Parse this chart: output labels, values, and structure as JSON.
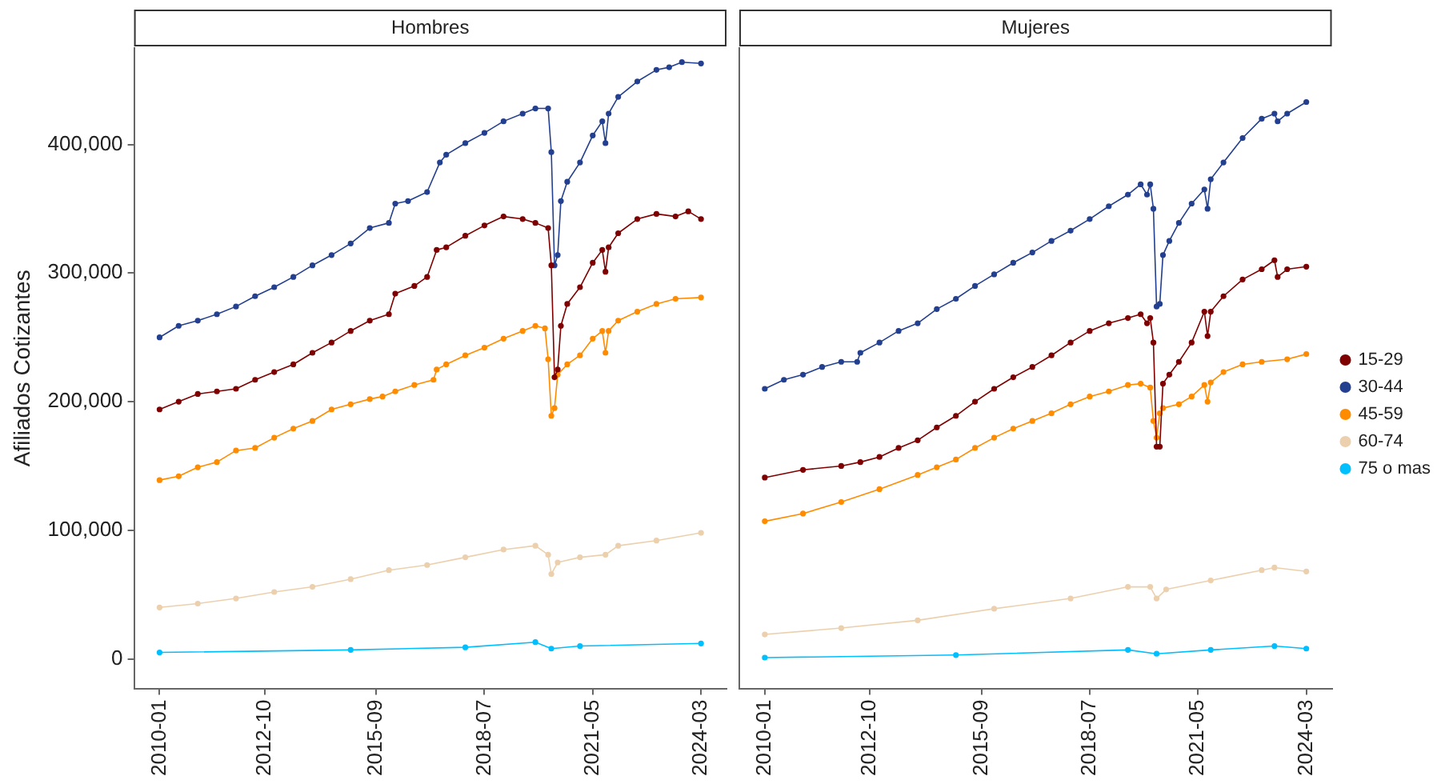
{
  "chart_data": [
    {
      "type": "line",
      "title": "Hombres",
      "ylabel": "Afiliados Cotizantes",
      "xlim": [
        "2009-05",
        "2024-11"
      ],
      "ylim": [
        -23000,
        475000
      ],
      "xticks": [
        "2010-01",
        "2012-10",
        "2015-09",
        "2018-07",
        "2021-05",
        "2024-03"
      ],
      "yticks": [
        {
          "value": 0,
          "label": "0"
        },
        {
          "value": 100000,
          "label": "100,000"
        },
        {
          "value": 200000,
          "label": "200,000"
        },
        {
          "value": 300000,
          "label": "300,000"
        },
        {
          "value": 400000,
          "label": "400,000"
        }
      ],
      "grid": false,
      "legend": false,
      "marker": "circle",
      "line_style": "solid",
      "series": [
        {
          "color": "#7f0000",
          "x": [
            "2010-01",
            "2010-07",
            "2011-01",
            "2011-07",
            "2012-01",
            "2012-07",
            "2013-01",
            "2013-07",
            "2014-01",
            "2014-07",
            "2015-01",
            "2015-07",
            "2016-01",
            "2016-03",
            "2016-09",
            "2017-01",
            "2017-04",
            "2017-07",
            "2018-01",
            "2018-07",
            "2019-01",
            "2019-07",
            "2019-11",
            "2020-03",
            "2020-04",
            "2020-05",
            "2020-06",
            "2020-07",
            "2020-09",
            "2021-01",
            "2021-05",
            "2021-08",
            "2021-09",
            "2021-10",
            "2022-01",
            "2022-07",
            "2023-01",
            "2023-07",
            "2023-11",
            "2024-03"
          ],
          "values": [
            194000,
            200000,
            206000,
            208000,
            210000,
            217000,
            223000,
            229000,
            238000,
            246000,
            255000,
            263000,
            268000,
            284000,
            290000,
            297000,
            318000,
            320000,
            329000,
            337000,
            344000,
            342000,
            339000,
            335000,
            306000,
            219000,
            225000,
            259000,
            276000,
            289000,
            308000,
            318000,
            301000,
            320000,
            331000,
            342000,
            346000,
            344000,
            348000,
            342000
          ]
        },
        {
          "color": "#233f8f",
          "x": [
            "2010-01",
            "2010-07",
            "2011-01",
            "2011-07",
            "2012-01",
            "2012-07",
            "2013-01",
            "2013-07",
            "2014-01",
            "2014-07",
            "2015-01",
            "2015-07",
            "2016-01",
            "2016-03",
            "2016-07",
            "2017-01",
            "2017-05",
            "2017-07",
            "2018-01",
            "2018-07",
            "2019-01",
            "2019-07",
            "2019-11",
            "2020-03",
            "2020-04",
            "2020-05",
            "2020-06",
            "2020-07",
            "2020-09",
            "2021-01",
            "2021-05",
            "2021-08",
            "2021-09",
            "2021-10",
            "2022-01",
            "2022-07",
            "2023-01",
            "2023-05",
            "2023-09",
            "2024-03"
          ],
          "values": [
            250000,
            259000,
            263000,
            268000,
            274000,
            282000,
            289000,
            297000,
            306000,
            314000,
            323000,
            335000,
            339000,
            354000,
            356000,
            363000,
            386000,
            392000,
            401000,
            409000,
            418000,
            424000,
            428000,
            428000,
            394000,
            306000,
            314000,
            356000,
            371000,
            386000,
            407000,
            418000,
            401000,
            424000,
            437000,
            449000,
            458000,
            460000,
            464000,
            463000
          ]
        },
        {
          "color": "#ff8c00",
          "x": [
            "2010-01",
            "2010-07",
            "2011-01",
            "2011-07",
            "2012-01",
            "2012-07",
            "2013-01",
            "2013-07",
            "2014-01",
            "2014-07",
            "2015-01",
            "2015-07",
            "2015-11",
            "2016-03",
            "2016-09",
            "2017-03",
            "2017-04",
            "2017-07",
            "2018-01",
            "2018-07",
            "2019-01",
            "2019-07",
            "2019-11",
            "2020-02",
            "2020-03",
            "2020-04",
            "2020-05",
            "2020-06",
            "2020-09",
            "2021-01",
            "2021-05",
            "2021-08",
            "2021-09",
            "2021-10",
            "2022-01",
            "2022-07",
            "2023-01",
            "2023-07",
            "2024-03"
          ],
          "values": [
            139000,
            142000,
            149000,
            153000,
            162000,
            164000,
            172000,
            179000,
            185000,
            194000,
            198000,
            202000,
            204000,
            208000,
            213000,
            217000,
            225000,
            229000,
            236000,
            242000,
            249000,
            255000,
            259000,
            257000,
            233000,
            189000,
            195000,
            221000,
            229000,
            236000,
            249000,
            255000,
            238000,
            255000,
            263000,
            270000,
            276000,
            280000,
            281000
          ]
        },
        {
          "color": "#ecd0ae",
          "x": [
            "2010-01",
            "2011-01",
            "2012-01",
            "2013-01",
            "2014-01",
            "2015-01",
            "2016-01",
            "2017-01",
            "2018-01",
            "2019-01",
            "2019-11",
            "2020-03",
            "2020-04",
            "2020-06",
            "2021-01",
            "2021-09",
            "2022-01",
            "2023-01",
            "2024-03"
          ],
          "values": [
            40000,
            43000,
            47000,
            52000,
            56000,
            62000,
            69000,
            73000,
            79000,
            85000,
            88000,
            81000,
            66000,
            75000,
            79000,
            81000,
            88000,
            92000,
            98000
          ]
        },
        {
          "color": "#00bfff",
          "x": [
            "2010-01",
            "2015-01",
            "2018-01",
            "2019-11",
            "2020-04",
            "2021-01",
            "2024-03"
          ],
          "values": [
            5000,
            7000,
            9000,
            13000,
            8000,
            10000,
            12000
          ]
        }
      ]
    },
    {
      "type": "line",
      "title": "Mujeres",
      "xlim": [
        "2009-05",
        "2024-11"
      ],
      "ylim": [
        -23000,
        475000
      ],
      "xticks": [
        "2010-01",
        "2012-10",
        "2015-09",
        "2018-07",
        "2021-05",
        "2024-03"
      ],
      "tick_labels": "x",
      "grid": false,
      "legend": "right",
      "marker": "circle",
      "line_style": "solid",
      "series": [
        {
          "name": "15-29",
          "color": "#7f0000",
          "x": [
            "2010-01",
            "2011-01",
            "2012-01",
            "2012-07",
            "2013-01",
            "2013-07",
            "2014-01",
            "2014-07",
            "2015-01",
            "2015-07",
            "2016-01",
            "2016-07",
            "2017-01",
            "2017-07",
            "2018-01",
            "2018-07",
            "2019-01",
            "2019-07",
            "2019-11",
            "2020-01",
            "2020-02",
            "2020-03",
            "2020-04",
            "2020-05",
            "2020-06",
            "2020-08",
            "2020-11",
            "2021-03",
            "2021-07",
            "2021-08",
            "2021-09",
            "2022-01",
            "2022-07",
            "2023-01",
            "2023-05",
            "2023-06",
            "2023-09",
            "2024-03"
          ],
          "values": [
            141000,
            147000,
            150000,
            153000,
            157000,
            164000,
            170000,
            180000,
            189000,
            200000,
            210000,
            219000,
            227000,
            236000,
            246000,
            255000,
            261000,
            265000,
            268000,
            261000,
            265000,
            246000,
            165000,
            165000,
            214000,
            221000,
            231000,
            246000,
            270000,
            251000,
            270000,
            282000,
            295000,
            303000,
            310000,
            297000,
            303000,
            305000
          ]
        },
        {
          "name": "30-44",
          "color": "#233f8f",
          "x": [
            "2010-01",
            "2010-07",
            "2011-01",
            "2011-07",
            "2012-01",
            "2012-06",
            "2012-07",
            "2013-01",
            "2013-07",
            "2014-01",
            "2014-07",
            "2015-01",
            "2015-07",
            "2016-01",
            "2016-07",
            "2017-01",
            "2017-07",
            "2018-01",
            "2018-07",
            "2019-01",
            "2019-07",
            "2019-11",
            "2020-01",
            "2020-02",
            "2020-03",
            "2020-04",
            "2020-05",
            "2020-06",
            "2020-08",
            "2020-11",
            "2021-03",
            "2021-07",
            "2021-08",
            "2021-09",
            "2022-01",
            "2022-07",
            "2023-01",
            "2023-05",
            "2023-06",
            "2023-09",
            "2024-03"
          ],
          "values": [
            210000,
            217000,
            221000,
            227000,
            231000,
            231000,
            238000,
            246000,
            255000,
            261000,
            272000,
            280000,
            290000,
            299000,
            308000,
            316000,
            325000,
            333000,
            342000,
            352000,
            361000,
            369000,
            361000,
            369000,
            350000,
            274000,
            276000,
            314000,
            325000,
            339000,
            354000,
            365000,
            350000,
            373000,
            386000,
            405000,
            420000,
            424000,
            418000,
            424000,
            433000
          ]
        },
        {
          "name": "45-59",
          "color": "#ff8c00",
          "x": [
            "2010-01",
            "2011-01",
            "2012-01",
            "2013-01",
            "2014-01",
            "2014-07",
            "2015-01",
            "2015-07",
            "2016-01",
            "2016-07",
            "2017-01",
            "2017-07",
            "2018-01",
            "2018-07",
            "2019-01",
            "2019-07",
            "2019-11",
            "2020-02",
            "2020-03",
            "2020-04",
            "2020-05",
            "2020-06",
            "2020-11",
            "2021-03",
            "2021-07",
            "2021-08",
            "2021-09",
            "2022-01",
            "2022-07",
            "2023-01",
            "2023-09",
            "2024-03"
          ],
          "values": [
            107000,
            113000,
            122000,
            132000,
            143000,
            149000,
            155000,
            164000,
            172000,
            179000,
            185000,
            191000,
            198000,
            204000,
            208000,
            213000,
            214000,
            211000,
            185000,
            172000,
            191000,
            195000,
            198000,
            204000,
            213000,
            200000,
            215000,
            223000,
            229000,
            231000,
            233000,
            237000
          ]
        },
        {
          "name": "60-74",
          "color": "#ecd0ae",
          "x": [
            "2010-01",
            "2012-01",
            "2014-01",
            "2016-01",
            "2018-01",
            "2019-07",
            "2020-02",
            "2020-04",
            "2020-07",
            "2021-09",
            "2023-01",
            "2023-05",
            "2024-03"
          ],
          "values": [
            19000,
            24000,
            30000,
            39000,
            47000,
            56000,
            56000,
            47000,
            54000,
            61000,
            69000,
            71000,
            68000
          ]
        },
        {
          "name": "75 o mas",
          "color": "#00bfff",
          "x": [
            "2010-01",
            "2015-01",
            "2019-07",
            "2020-04",
            "2021-09",
            "2023-05",
            "2024-03"
          ],
          "values": [
            1000,
            3000,
            7000,
            4000,
            7000,
            10000,
            8000
          ]
        }
      ]
    }
  ]
}
